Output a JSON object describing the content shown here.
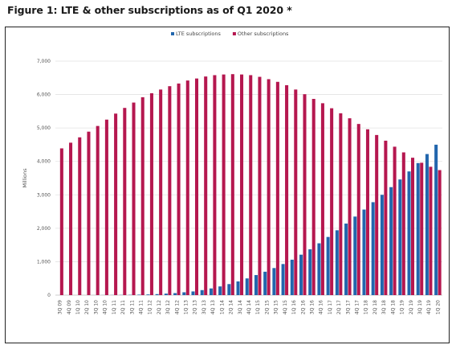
{
  "figure": {
    "title": "Figure 1: LTE & other subscriptions as of Q1 2020 *"
  },
  "colors": {
    "lte": "#2266ad",
    "other": "#b5174f",
    "grid": "#e2e2e2",
    "axis": "#bbbbbb"
  },
  "chart_data": {
    "type": "bar",
    "stacked": false,
    "ylabel": "Millions",
    "xlabel": "",
    "ylim": [
      0,
      7000
    ],
    "yticks": [
      0,
      1000,
      2000,
      3000,
      4000,
      5000,
      6000,
      7000
    ],
    "ytick_labels": [
      "0",
      "1,000",
      "2,000",
      "3,000",
      "4,000",
      "5,000",
      "6,000",
      "7,000"
    ],
    "grid": true,
    "legend_position": "top-center",
    "categories": [
      "3Q 09",
      "4Q 09",
      "1Q 10",
      "2Q 10",
      "3Q 10",
      "4Q 10",
      "1Q 11",
      "2Q 11",
      "3Q 11",
      "4Q 11",
      "1Q 12",
      "2Q 12",
      "3Q 12",
      "4Q 12",
      "1Q 13",
      "2Q 13",
      "3Q 13",
      "4Q 13",
      "1Q 14",
      "2Q 14",
      "3Q 14",
      "4Q 14",
      "1Q 15",
      "2Q 15",
      "3Q 15",
      "4Q 15",
      "1Q 16",
      "2Q 16",
      "3Q 16",
      "4Q 16",
      "1Q 17",
      "2Q 17",
      "3Q 17",
      "4Q 17",
      "1Q 18",
      "2Q 18",
      "3Q 18",
      "4Q 18",
      "1Q 19",
      "2Q 19",
      "3Q 19",
      "4Q 19",
      "1Q 20"
    ],
    "series": [
      {
        "name": "LTE subscriptions",
        "color": "#2266ad",
        "values": [
          0,
          0,
          0,
          0,
          1,
          2,
          3,
          5,
          8,
          14,
          20,
          30,
          45,
          60,
          85,
          110,
          150,
          200,
          260,
          330,
          410,
          500,
          600,
          700,
          810,
          930,
          1060,
          1210,
          1370,
          1550,
          1740,
          1940,
          2140,
          2350,
          2560,
          2780,
          3000,
          3230,
          3460,
          3700,
          3950,
          4220,
          4500
        ]
      },
      {
        "name": "Other subscriptions",
        "color": "#b5174f",
        "values": [
          4390,
          4560,
          4720,
          4890,
          5060,
          5250,
          5430,
          5600,
          5760,
          5920,
          6040,
          6150,
          6250,
          6330,
          6420,
          6480,
          6540,
          6580,
          6600,
          6610,
          6600,
          6580,
          6530,
          6460,
          6380,
          6280,
          6150,
          6010,
          5870,
          5740,
          5590,
          5440,
          5290,
          5120,
          4960,
          4790,
          4620,
          4440,
          4270,
          4110,
          3960,
          3840,
          3740
        ]
      }
    ]
  }
}
